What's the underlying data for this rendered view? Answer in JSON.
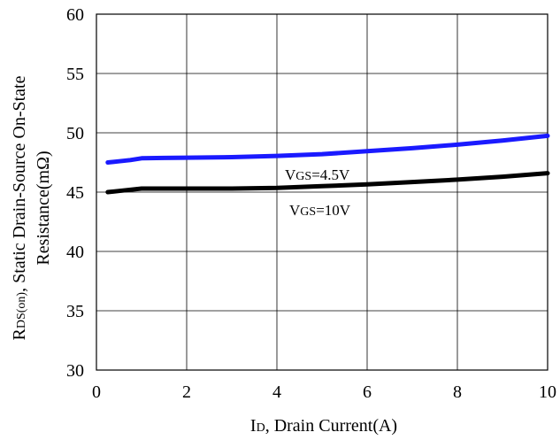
{
  "chart_data": {
    "type": "line",
    "title": "",
    "xlabel": {
      "main": "I",
      "sub": "D",
      "rest": ", Drain Current(A)"
    },
    "ylabel": {
      "line1": {
        "main": "R",
        "sub": "DS(on)",
        "rest": ", Static Drain-Source On-State"
      },
      "line2": "Resistance(mΩ)"
    },
    "xlim": [
      0,
      10
    ],
    "ylim": [
      30,
      60
    ],
    "xticks": [
      0,
      2,
      4,
      6,
      8,
      10
    ],
    "yticks": [
      30,
      35,
      40,
      45,
      50,
      55,
      60
    ],
    "grid": true,
    "series": [
      {
        "color": "#1a1aff",
        "x": [
          0.25,
          0.5,
          0.75,
          1.0,
          1.5,
          2,
          3,
          4,
          5,
          6,
          7,
          8,
          9,
          10
        ],
        "y": [
          47.5,
          47.6,
          47.7,
          47.85,
          47.88,
          47.9,
          47.95,
          48.05,
          48.2,
          48.45,
          48.7,
          49.0,
          49.35,
          49.75
        ]
      },
      {
        "color": "#000000",
        "x": [
          0.25,
          0.5,
          0.75,
          1.0,
          1.5,
          2,
          3,
          4,
          5,
          6,
          7,
          8,
          9,
          10
        ],
        "y": [
          45.0,
          45.1,
          45.2,
          45.3,
          45.3,
          45.3,
          45.3,
          45.35,
          45.5,
          45.65,
          45.85,
          46.05,
          46.3,
          46.6
        ]
      }
    ],
    "annotations": [
      {
        "main": "V",
        "sub": "GS",
        "rest": "=4.5V"
      },
      {
        "main": "V",
        "sub": "GS",
        "rest": "=10V"
      }
    ]
  }
}
